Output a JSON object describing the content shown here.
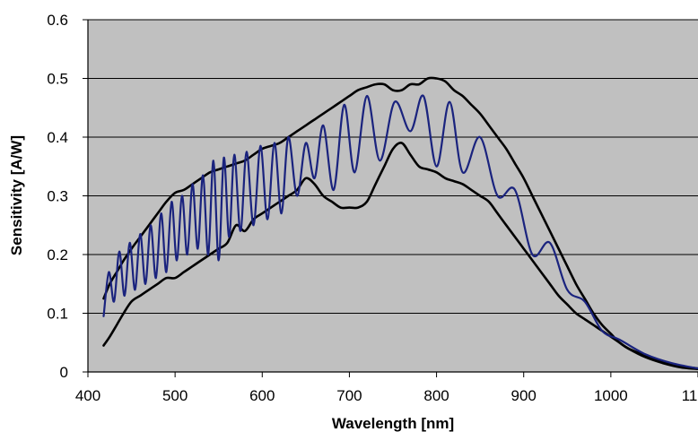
{
  "chart_data": {
    "type": "line",
    "title": "",
    "xlabel": "Wavelength [nm]",
    "ylabel": "Sensitivity [A/W]",
    "xlim": [
      400,
      1100
    ],
    "ylim": [
      0,
      0.6
    ],
    "xticks": [
      400,
      500,
      600,
      700,
      800,
      900,
      1000,
      1100
    ],
    "yticks": [
      0,
      0.1,
      0.2,
      0.3,
      0.4,
      0.5,
      0.6
    ],
    "ytick_labels": [
      "0",
      "0.1",
      "0.2",
      "0.3",
      "0.4",
      "0.5",
      "0.6"
    ],
    "grid": "horizontal",
    "legend": "none",
    "plot_background": "#c0c0c0",
    "series": [
      {
        "role": "upper-envelope",
        "color": "#000000",
        "x": [
          418,
          425,
          433,
          441,
          450,
          460,
          470,
          480,
          490,
          500,
          510,
          520,
          530,
          540,
          550,
          560,
          570,
          580,
          590,
          600,
          610,
          620,
          630,
          640,
          650,
          660,
          670,
          680,
          690,
          700,
          710,
          720,
          730,
          740,
          750,
          760,
          770,
          780,
          790,
          800,
          810,
          820,
          830,
          840,
          850,
          860,
          870,
          880,
          890,
          900,
          910,
          920,
          930,
          940,
          950,
          960,
          970,
          980,
          990,
          1000,
          1010,
          1020,
          1040,
          1060,
          1080,
          1100
        ],
        "y": [
          0.125,
          0.15,
          0.17,
          0.19,
          0.21,
          0.23,
          0.25,
          0.27,
          0.29,
          0.305,
          0.31,
          0.32,
          0.33,
          0.34,
          0.345,
          0.35,
          0.355,
          0.36,
          0.37,
          0.38,
          0.385,
          0.39,
          0.4,
          0.41,
          0.42,
          0.43,
          0.44,
          0.45,
          0.46,
          0.47,
          0.48,
          0.485,
          0.49,
          0.49,
          0.48,
          0.48,
          0.49,
          0.49,
          0.5,
          0.5,
          0.495,
          0.48,
          0.47,
          0.455,
          0.44,
          0.42,
          0.4,
          0.38,
          0.355,
          0.33,
          0.3,
          0.27,
          0.24,
          0.21,
          0.18,
          0.15,
          0.125,
          0.1,
          0.08,
          0.065,
          0.05,
          0.04,
          0.025,
          0.015,
          0.008,
          0.005
        ]
      },
      {
        "role": "lower-envelope",
        "color": "#000000",
        "x": [
          418,
          425,
          433,
          441,
          450,
          460,
          470,
          480,
          490,
          500,
          510,
          520,
          530,
          540,
          550,
          560,
          570,
          580,
          590,
          600,
          610,
          620,
          630,
          640,
          650,
          660,
          670,
          680,
          690,
          700,
          710,
          720,
          730,
          740,
          750,
          760,
          770,
          780,
          790,
          800,
          810,
          820,
          830,
          840,
          850,
          860,
          870,
          880,
          890,
          900,
          910,
          920,
          930,
          940,
          950,
          960,
          970,
          980,
          990,
          1000,
          1010,
          1020,
          1040,
          1060,
          1080,
          1100
        ],
        "y": [
          0.045,
          0.06,
          0.08,
          0.1,
          0.12,
          0.13,
          0.14,
          0.15,
          0.16,
          0.16,
          0.17,
          0.18,
          0.19,
          0.2,
          0.21,
          0.22,
          0.25,
          0.24,
          0.26,
          0.27,
          0.28,
          0.29,
          0.3,
          0.31,
          0.33,
          0.32,
          0.3,
          0.29,
          0.28,
          0.28,
          0.28,
          0.29,
          0.32,
          0.35,
          0.38,
          0.39,
          0.37,
          0.35,
          0.345,
          0.34,
          0.33,
          0.325,
          0.32,
          0.31,
          0.3,
          0.29,
          0.27,
          0.25,
          0.23,
          0.21,
          0.19,
          0.17,
          0.15,
          0.13,
          0.115,
          0.1,
          0.09,
          0.08,
          0.07,
          0.06,
          0.05,
          0.04,
          0.028,
          0.018,
          0.01,
          0.006
        ]
      },
      {
        "role": "measured-oscillating",
        "color": "#1a237e",
        "x": [
          418,
          424,
          430,
          436,
          442,
          448,
          454,
          460,
          466,
          472,
          478,
          484,
          490,
          496,
          502,
          508,
          514,
          520,
          526,
          532,
          538,
          544,
          550,
          556,
          562,
          568,
          575,
          582,
          590,
          598,
          606,
          614,
          622,
          630,
          640,
          650,
          660,
          670,
          682,
          694,
          706,
          720,
          735,
          752,
          770,
          785,
          800,
          815,
          830,
          850,
          870,
          890,
          910,
          930,
          950,
          970,
          990,
          1010,
          1040,
          1070,
          1100
        ],
        "y": [
          0.095,
          0.17,
          0.12,
          0.205,
          0.13,
          0.22,
          0.14,
          0.235,
          0.15,
          0.25,
          0.16,
          0.27,
          0.17,
          0.29,
          0.19,
          0.3,
          0.2,
          0.32,
          0.21,
          0.335,
          0.2,
          0.36,
          0.19,
          0.365,
          0.23,
          0.37,
          0.24,
          0.375,
          0.25,
          0.385,
          0.26,
          0.39,
          0.27,
          0.4,
          0.3,
          0.39,
          0.33,
          0.42,
          0.31,
          0.455,
          0.34,
          0.47,
          0.36,
          0.46,
          0.41,
          0.47,
          0.35,
          0.46,
          0.34,
          0.4,
          0.3,
          0.31,
          0.2,
          0.22,
          0.14,
          0.12,
          0.07,
          0.055,
          0.03,
          0.015,
          0.006
        ]
      }
    ]
  }
}
